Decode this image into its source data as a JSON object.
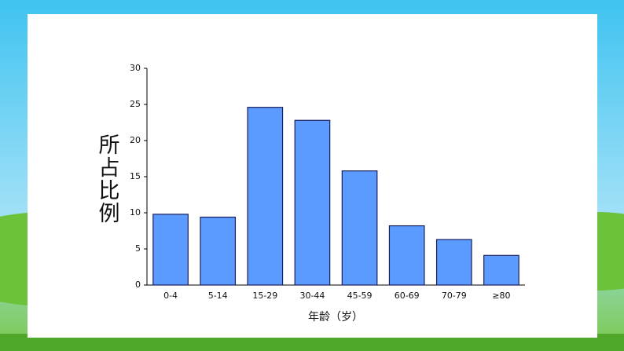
{
  "chart_data": {
    "type": "bar",
    "categories": [
      "0-4",
      "5-14",
      "15-29",
      "30-44",
      "45-59",
      "60-69",
      "70-79",
      "≥80"
    ],
    "values": [
      9.8,
      9.4,
      24.6,
      22.8,
      15.8,
      8.2,
      6.3,
      4.1
    ],
    "color": "#5b9aff",
    "ylim": [
      0,
      30
    ],
    "yticks": [
      0,
      5,
      10,
      15,
      20,
      25,
      30
    ],
    "y_label": "所占比例",
    "x_label": "年龄（岁）"
  }
}
